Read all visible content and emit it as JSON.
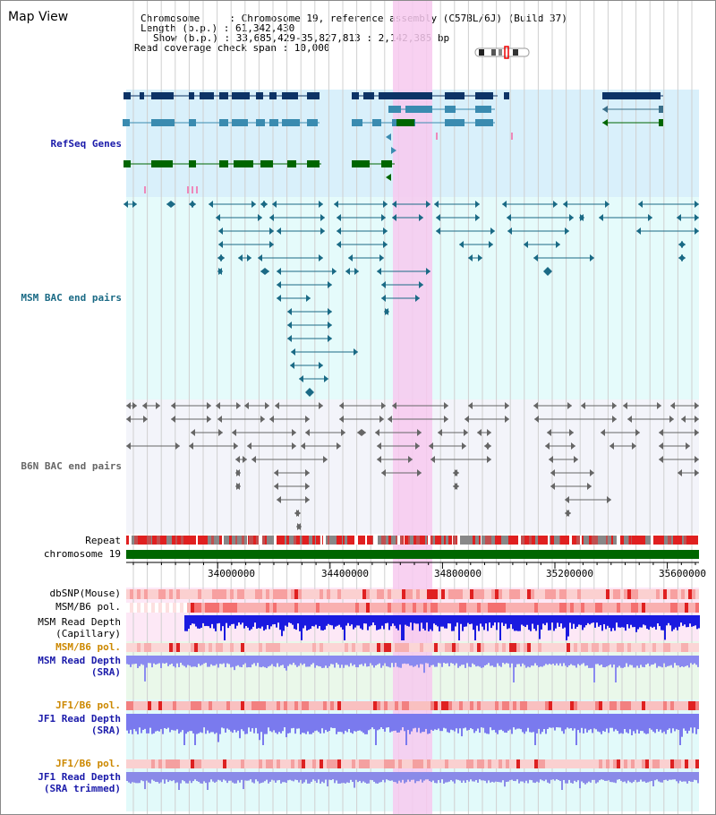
{
  "page_title": "Map View",
  "info": {
    "chromosome": "Chromosome     : Chromosome 19, reference assembly (C57BL/6J) (Build 37)",
    "length": "Length (b.p.) : 61,342,430",
    "show": "Show (b.p.) : 33,685,429-35,827,813 : 2,142,385 bp",
    "read_span": "Read coverage check span : 10,000"
  },
  "tracks": {
    "refseq": "RefSeq Genes",
    "msm_bac": "MSM BAC end pairs",
    "b6n_bac": "B6N BAC end pairs",
    "repeat": "Repeat",
    "chromosome": "chromosome 19",
    "dbsnp": "dbSNP(Mouse)",
    "msm_b6_pol_1": "MSM/B6 pol.",
    "msm_read_depth_cap_1": "MSM Read Depth",
    "msm_read_depth_cap_2": "(Capillary)",
    "msm_b6_pol_2": "MSM/B6 pol.",
    "msm_read_depth_sra_1": "MSM Read Depth",
    "msm_read_depth_sra_2": "(SRA)",
    "jf1_b6_pol_1": "JF1/B6 pol.",
    "jf1_read_depth_sra_1": "JF1 Read Depth",
    "jf1_read_depth_sra_2": "(SRA)",
    "jf1_b6_pol_2": "JF1/B6 pol.",
    "jf1_read_depth_trim_1": "JF1 Read Depth",
    "jf1_read_depth_trim_2": "(SRA trimmed)"
  },
  "axis_ticks": [
    "34000000",
    "34400000",
    "34800000",
    "35200000",
    "35600000"
  ],
  "colors": {
    "refseq_dark": "#0d3366",
    "refseq_mid": "#3a8bb0",
    "refseq_green": "#006600",
    "msm_bac": "#1a6a85",
    "b6n_bac": "#666666",
    "highlight": "#f7c9ee",
    "label_blue": "#1a1aaa",
    "label_teal": "#1a6a85",
    "label_orange": "#cc8800"
  }
}
